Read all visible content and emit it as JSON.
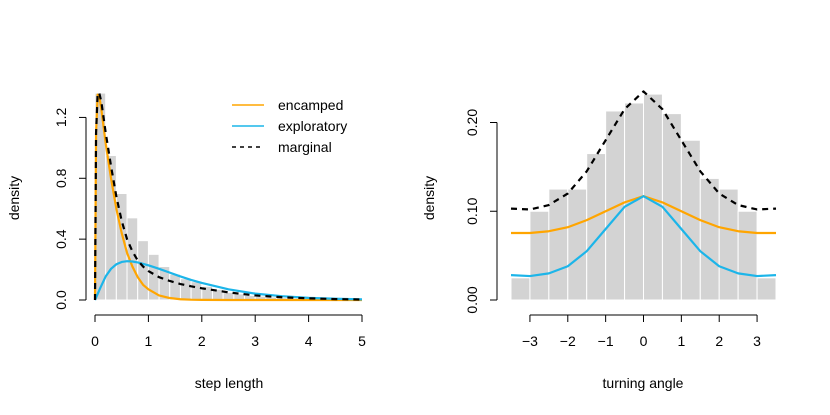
{
  "chart_data": [
    {
      "type": "bar",
      "subtype": "histogram with fitted density curves",
      "xlabel": "step length",
      "ylabel": "density",
      "xlim": [
        0,
        5
      ],
      "ylim": [
        0,
        1.4
      ],
      "x_ticks": [
        "0",
        "1",
        "2",
        "3",
        "4",
        "5"
      ],
      "y_ticks": [
        "0.0",
        "0.4",
        "0.8",
        "1.2"
      ],
      "histogram": {
        "bin_width": 0.2,
        "bins_left": [
          0.0,
          0.2,
          0.4,
          0.6,
          0.8,
          1.0,
          1.2,
          1.4,
          1.6,
          1.8,
          2.0,
          2.2,
          2.4,
          2.6,
          2.8,
          3.0,
          3.2,
          3.4,
          3.6,
          3.8,
          4.0,
          4.2,
          4.4,
          4.6,
          4.8
        ],
        "values": [
          1.36,
          0.95,
          0.7,
          0.54,
          0.39,
          0.3,
          0.22,
          0.17,
          0.14,
          0.12,
          0.09,
          0.07,
          0.05,
          0.04,
          0.03,
          0.025,
          0.02,
          0.015,
          0.012,
          0.01,
          0.008,
          0.006,
          0.004,
          0.003,
          0.002
        ]
      },
      "legend": {
        "position": "top-right",
        "entries": [
          {
            "label": "encamped",
            "color": "#FFA500",
            "style": "solid"
          },
          {
            "label": "exploratory",
            "color": "#1CB5E9",
            "style": "solid"
          },
          {
            "label": "marginal",
            "color": "#000000",
            "style": "dashed"
          }
        ]
      },
      "series": [
        {
          "name": "encamped",
          "color": "#FFA500",
          "style": "solid",
          "x": [
            0,
            0.02,
            0.05,
            0.08,
            0.12,
            0.16,
            0.2,
            0.3,
            0.4,
            0.5,
            0.6,
            0.7,
            0.8,
            0.9,
            1.0,
            1.2,
            1.4,
            1.6,
            1.8,
            2.0,
            2.5,
            3.0,
            4.0,
            5.0
          ],
          "y": [
            0,
            1.1,
            1.35,
            1.34,
            1.25,
            1.14,
            1.03,
            0.8,
            0.6,
            0.44,
            0.31,
            0.22,
            0.15,
            0.1,
            0.07,
            0.03,
            0.013,
            0.005,
            0.002,
            0.001,
            0,
            0,
            0,
            0
          ]
        },
        {
          "name": "exploratory",
          "color": "#1CB5E9",
          "style": "solid",
          "x": [
            0,
            0.1,
            0.2,
            0.3,
            0.4,
            0.5,
            0.6,
            0.7,
            0.8,
            1.0,
            1.2,
            1.4,
            1.6,
            1.8,
            2.0,
            2.5,
            3.0,
            3.5,
            4.0,
            4.5,
            5.0
          ],
          "y": [
            0,
            0.08,
            0.155,
            0.205,
            0.235,
            0.25,
            0.255,
            0.253,
            0.247,
            0.228,
            0.205,
            0.18,
            0.155,
            0.132,
            0.112,
            0.07,
            0.042,
            0.025,
            0.014,
            0.008,
            0.004
          ]
        },
        {
          "name": "marginal",
          "color": "#000000",
          "style": "dashed",
          "x": [
            0,
            0.02,
            0.05,
            0.08,
            0.12,
            0.16,
            0.2,
            0.3,
            0.4,
            0.5,
            0.6,
            0.7,
            0.8,
            0.9,
            1.0,
            1.2,
            1.4,
            1.6,
            1.8,
            2.0,
            2.5,
            3.0,
            3.5,
            4.0,
            4.5,
            5.0
          ],
          "y": [
            0,
            1.1,
            1.36,
            1.36,
            1.3,
            1.2,
            1.1,
            0.88,
            0.68,
            0.52,
            0.4,
            0.32,
            0.26,
            0.22,
            0.19,
            0.15,
            0.125,
            0.105,
            0.09,
            0.077,
            0.05,
            0.03,
            0.018,
            0.011,
            0.006,
            0.003
          ]
        }
      ]
    },
    {
      "type": "bar",
      "subtype": "histogram with fitted density curves",
      "xlabel": "turning angle",
      "ylabel": "density",
      "xlim": [
        -3.5,
        3.5
      ],
      "ylim": [
        0,
        0.24
      ],
      "x_ticks": [
        "−3",
        "−2",
        "−1",
        "0",
        "1",
        "2",
        "3"
      ],
      "y_ticks": [
        "0.00",
        "0.10",
        "0.20"
      ],
      "histogram": {
        "bin_width": 0.5,
        "bins_left": [
          -3.5,
          -3.0,
          -2.5,
          -2.0,
          -1.5,
          -1.0,
          -0.5,
          0.0,
          0.5,
          1.0,
          1.5,
          2.0,
          2.5,
          3.0
        ],
        "values": [
          0.025,
          0.1,
          0.125,
          0.125,
          0.165,
          0.213,
          0.222,
          0.232,
          0.21,
          0.18,
          0.137,
          0.125,
          0.1,
          0.025
        ]
      },
      "series": [
        {
          "name": "encamped",
          "color": "#FFA500",
          "style": "solid",
          "x": [
            -3.5,
            -3.0,
            -2.5,
            -2.0,
            -1.5,
            -1.0,
            -0.5,
            0,
            0.5,
            1.0,
            1.5,
            2.0,
            2.5,
            3.0,
            3.5
          ],
          "y": [
            0.0755,
            0.0755,
            0.0775,
            0.082,
            0.09,
            0.1,
            0.11,
            0.117,
            0.11,
            0.1,
            0.09,
            0.082,
            0.0775,
            0.0755,
            0.0755
          ]
        },
        {
          "name": "exploratory",
          "color": "#1CB5E9",
          "style": "solid",
          "x": [
            -3.5,
            -3.0,
            -2.5,
            -2.0,
            -1.5,
            -1.0,
            -0.5,
            0,
            0.5,
            1.0,
            1.5,
            2.0,
            2.5,
            3.0,
            3.5
          ],
          "y": [
            0.028,
            0.027,
            0.03,
            0.038,
            0.055,
            0.08,
            0.105,
            0.117,
            0.105,
            0.08,
            0.055,
            0.038,
            0.03,
            0.027,
            0.028
          ]
        },
        {
          "name": "marginal",
          "color": "#000000",
          "style": "dashed",
          "x": [
            -3.5,
            -3.0,
            -2.5,
            -2.0,
            -1.5,
            -1.0,
            -0.5,
            0,
            0.5,
            1.0,
            1.5,
            2.0,
            2.5,
            3.0,
            3.5
          ],
          "y": [
            0.103,
            0.102,
            0.107,
            0.12,
            0.145,
            0.18,
            0.215,
            0.235,
            0.215,
            0.18,
            0.145,
            0.12,
            0.107,
            0.102,
            0.103
          ]
        }
      ]
    }
  ]
}
